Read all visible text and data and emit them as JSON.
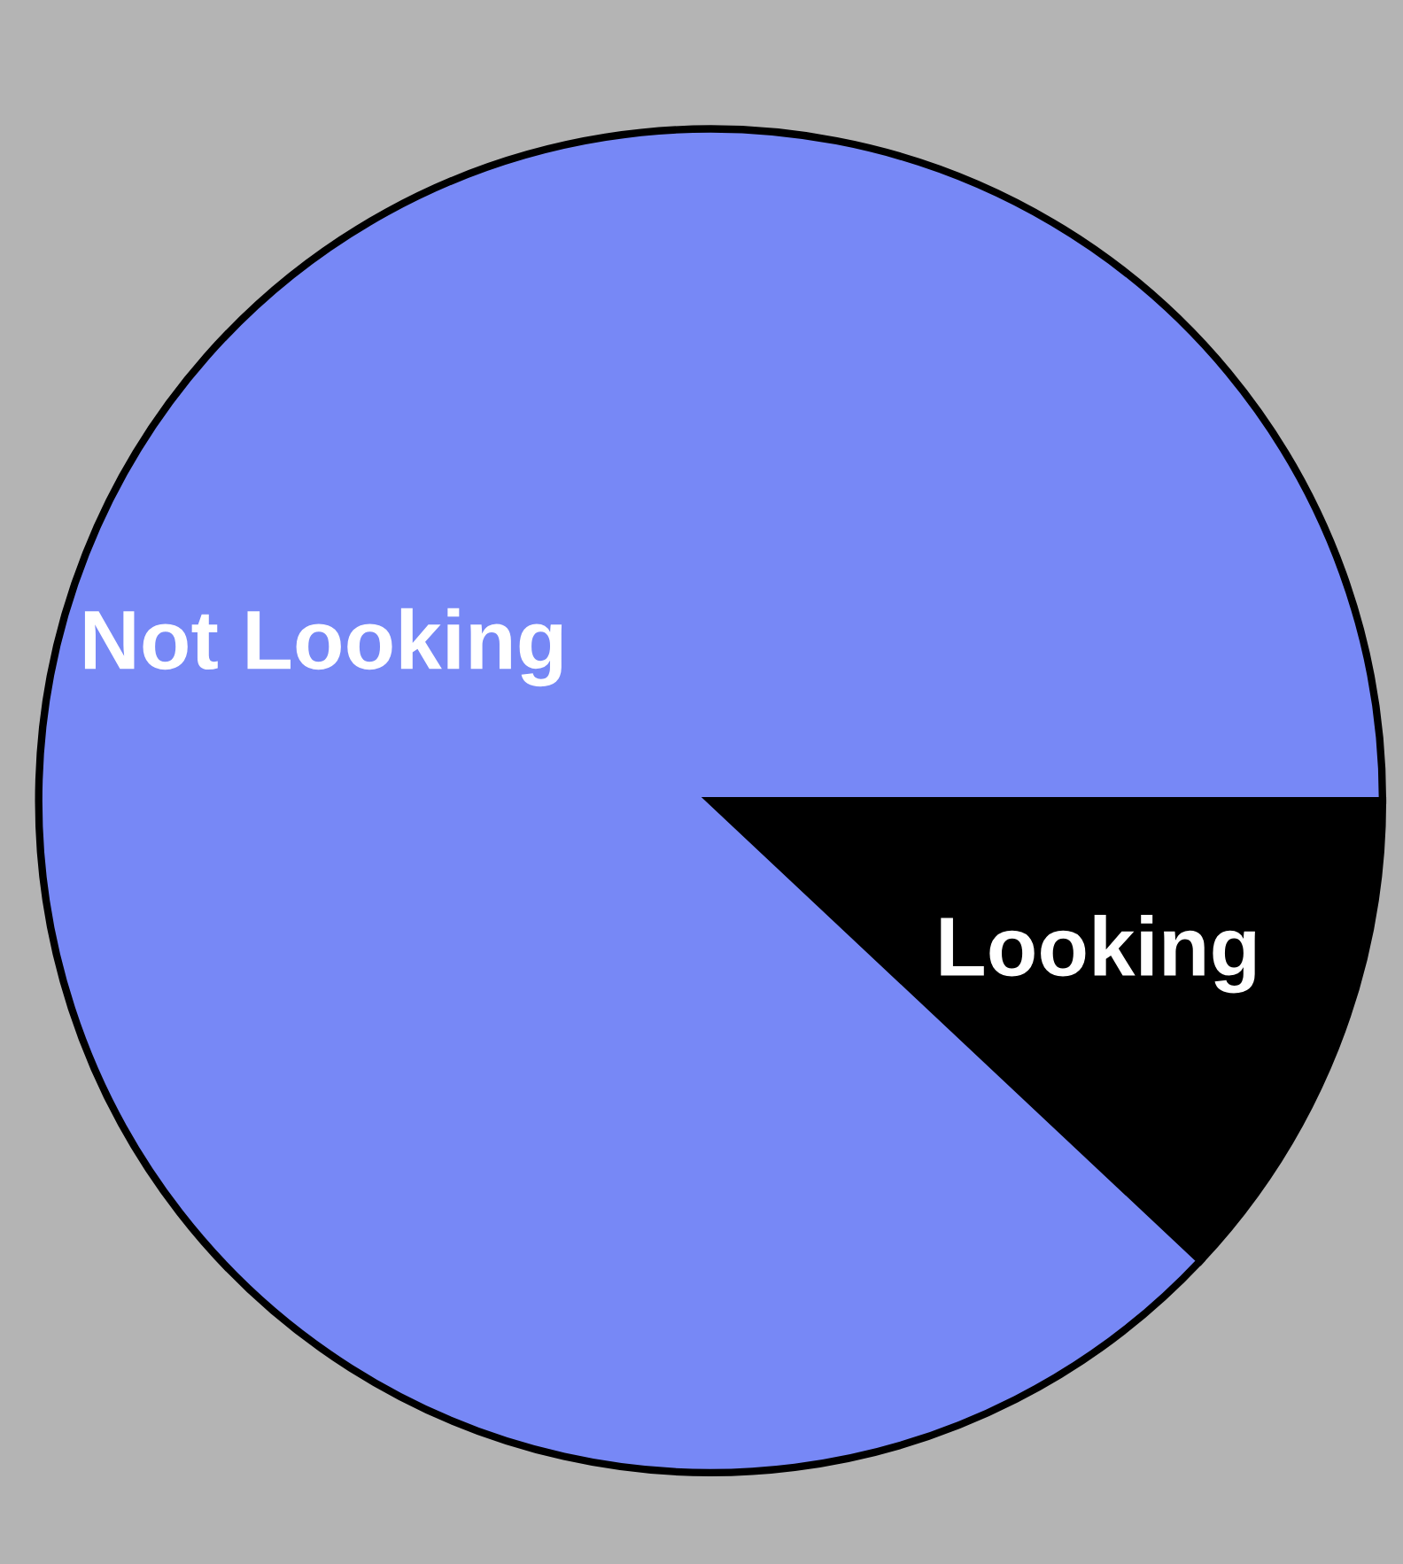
{
  "chart_data": {
    "type": "pie",
    "categories": [
      "Looking",
      "Not Looking"
    ],
    "values": [
      12,
      88
    ],
    "colors": [
      "#000000",
      "#7788f6"
    ]
  }
}
